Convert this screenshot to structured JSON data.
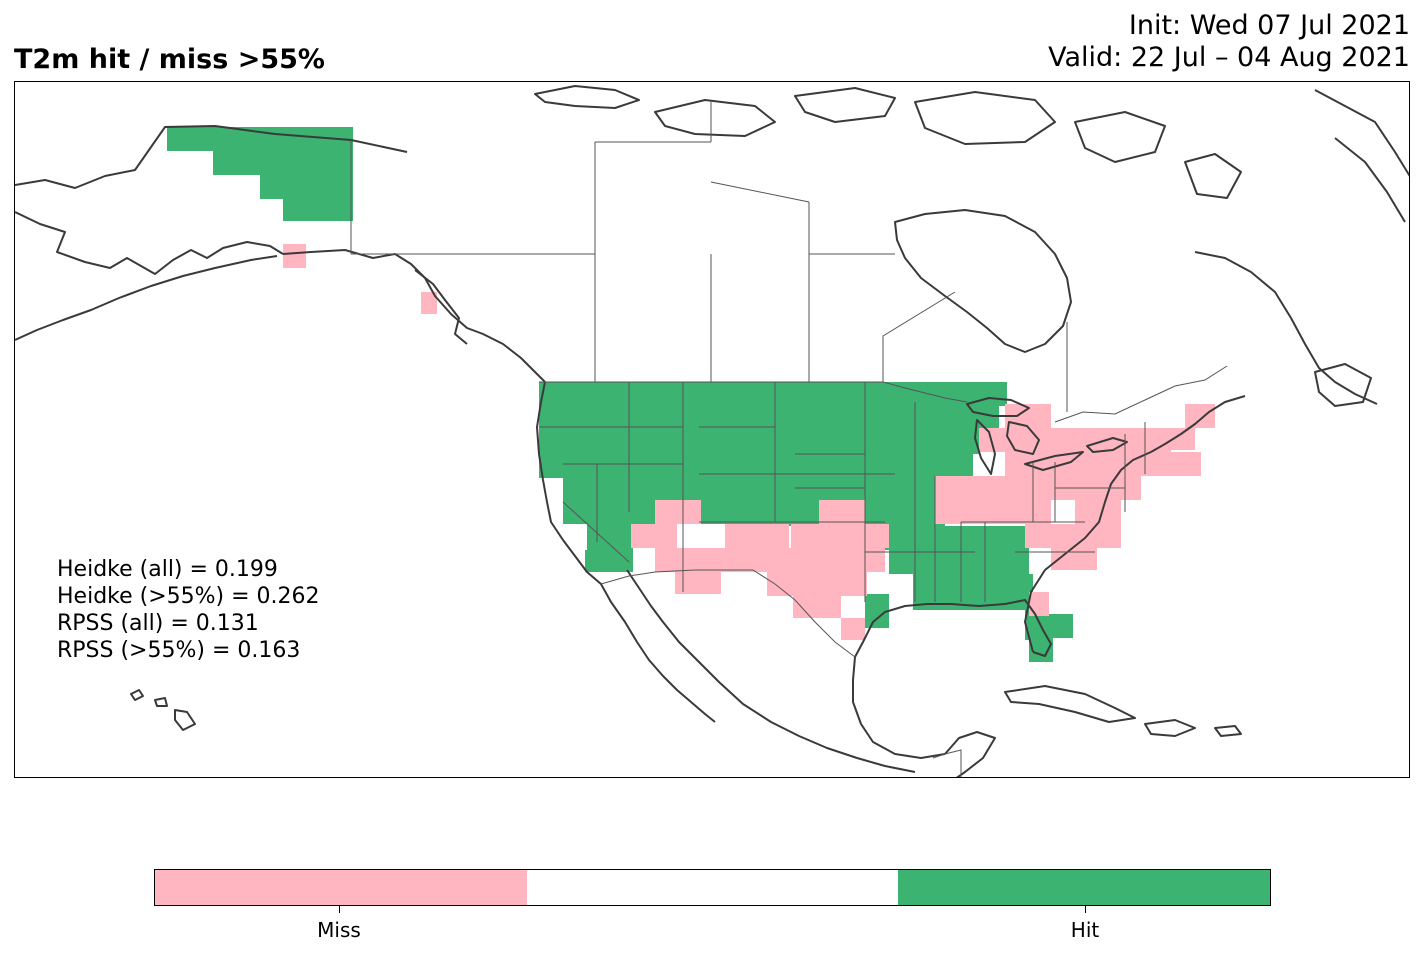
{
  "title": {
    "main": "T2m hit / miss  >55%",
    "init": "Init: Wed 07 Jul 2021",
    "valid": "Valid: 22 Jul – 04 Aug 2021"
  },
  "stats": [
    "Heidke (all) = 0.199",
    "Heidke (>55%) = 0.262",
    "RPSS (all) = 0.131",
    "RPSS (>55%) = 0.163"
  ],
  "legend": {
    "categories": [
      {
        "label": "Miss",
        "color": "#ffb6c1"
      },
      {
        "label": "",
        "color": "#ffffff"
      },
      {
        "label": "Hit",
        "color": "#3cb371"
      }
    ]
  },
  "colors": {
    "miss": "#ffb6c1",
    "hit": "#3cb371",
    "coast": "#3a3a3a",
    "border": "#555555"
  }
}
